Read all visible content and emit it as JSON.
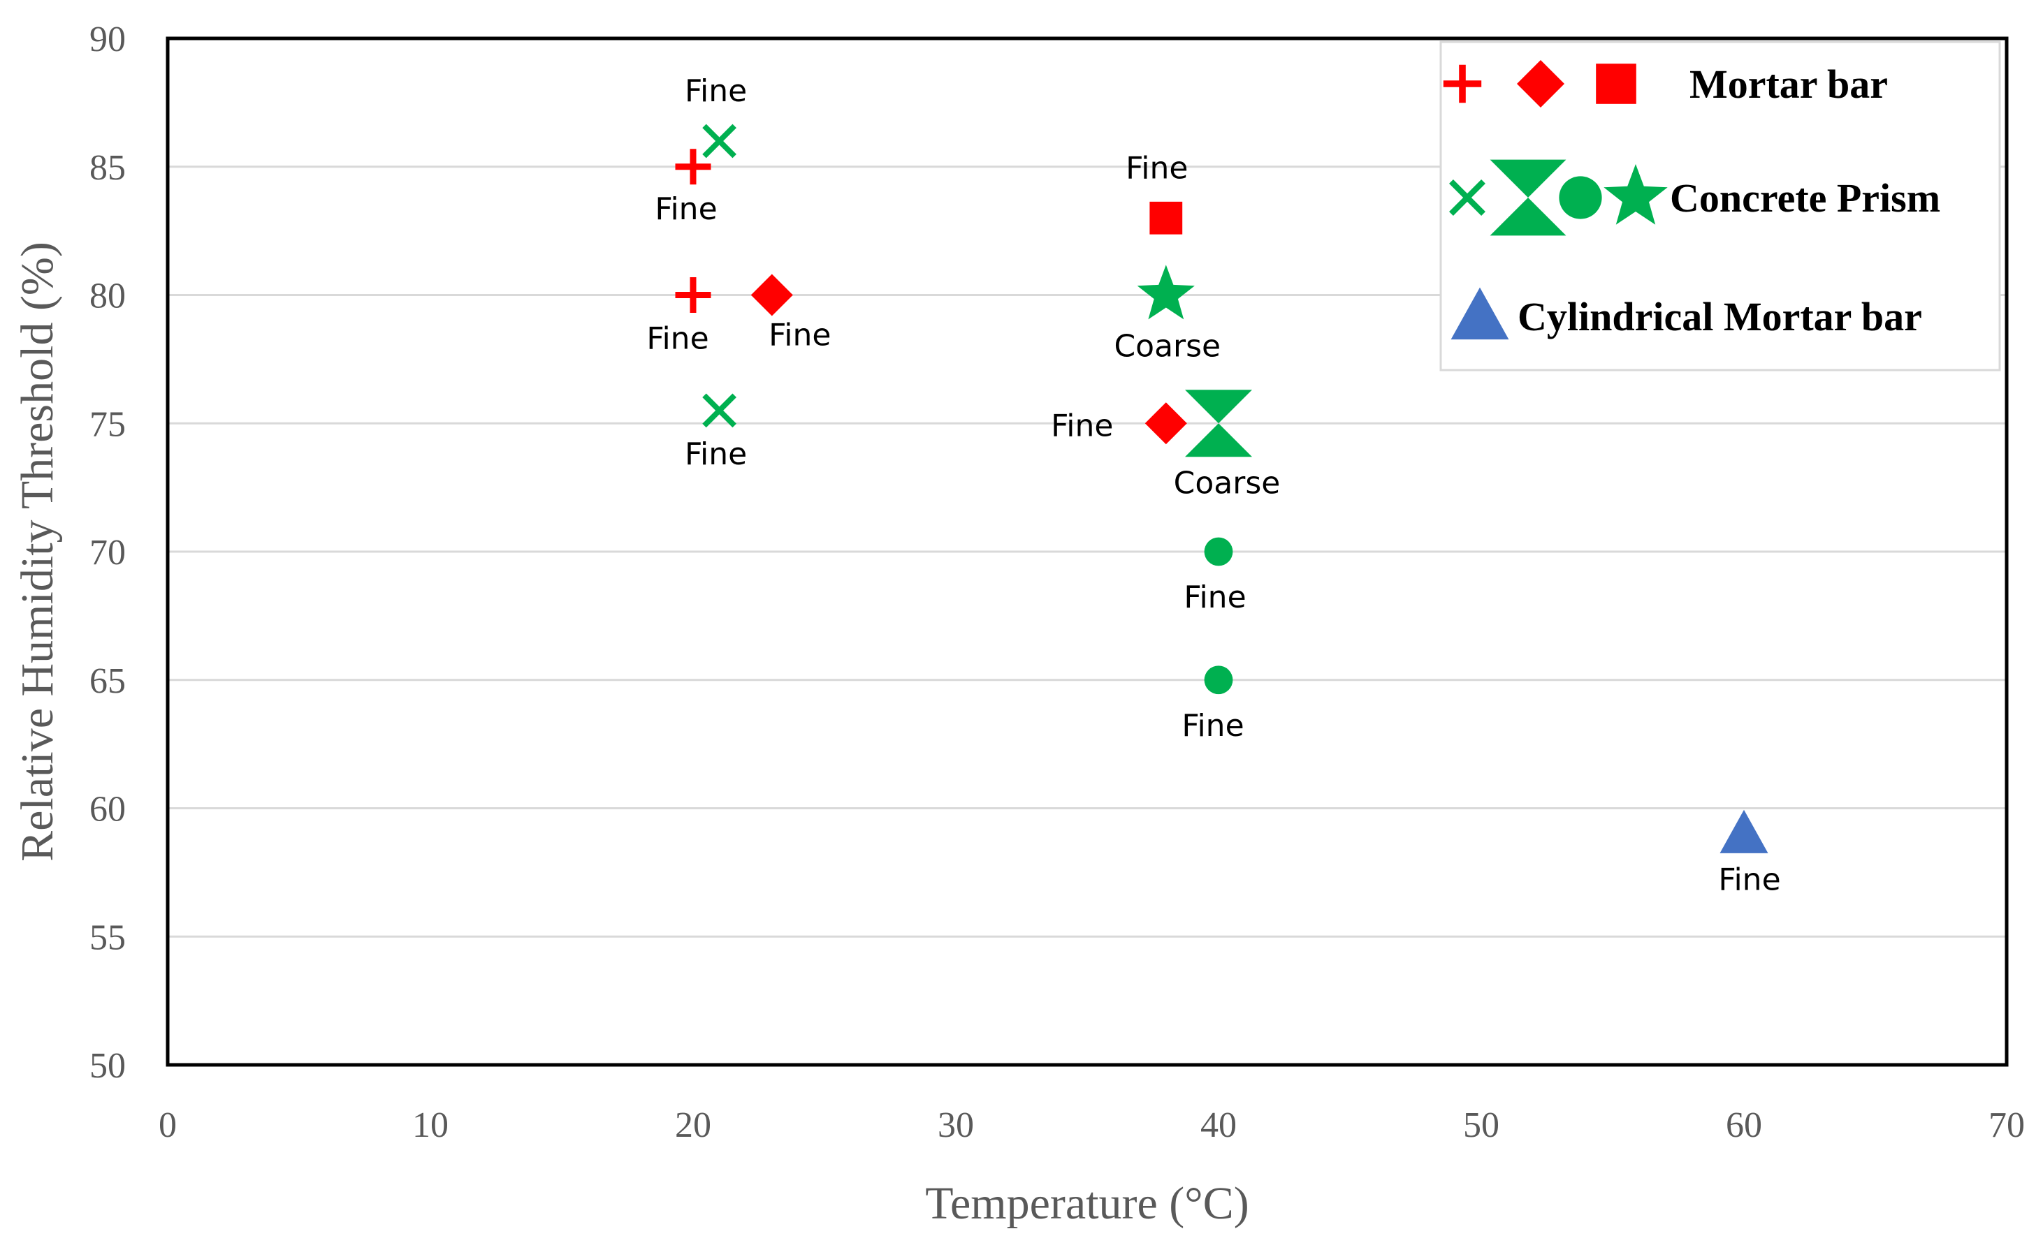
{
  "chart_data": {
    "type": "scatter",
    "title": "",
    "xlabel": "Temperature (°C)",
    "ylabel": "Relative Humidity Threshold (%)",
    "xlim": [
      0,
      70
    ],
    "ylim": [
      50,
      90
    ],
    "x_ticks": [
      0,
      10,
      20,
      30,
      40,
      50,
      60,
      70
    ],
    "y_ticks": [
      50,
      55,
      60,
      65,
      70,
      75,
      80,
      85,
      90
    ],
    "grid": "horizontal",
    "legend_position": "top-right",
    "colors": {
      "mortar": "#ff0000",
      "concrete": "#00b050",
      "cylindrical": "#4472c4"
    },
    "legend": [
      {
        "name": "Mortar bar",
        "markers": [
          "plus",
          "diamond",
          "square"
        ],
        "color": "#ff0000"
      },
      {
        "name": "Concrete Prism",
        "markers": [
          "x",
          "hourglass",
          "circle",
          "star"
        ],
        "color": "#00b050"
      },
      {
        "name": "Cylindrical Mortar bar",
        "markers": [
          "triangle"
        ],
        "color": "#4472c4"
      }
    ],
    "series": [
      {
        "name": "Mortar bar",
        "color": "#ff0000",
        "points": [
          {
            "x": 20,
            "y": 85,
            "marker": "plus",
            "label": "Fine"
          },
          {
            "x": 20,
            "y": 80,
            "marker": "plus",
            "label": "Fine"
          },
          {
            "x": 23,
            "y": 80,
            "marker": "diamond",
            "label": "Fine"
          },
          {
            "x": 38,
            "y": 83,
            "marker": "square",
            "label": "Fine"
          },
          {
            "x": 38,
            "y": 75,
            "marker": "diamond",
            "label": "Fine"
          }
        ]
      },
      {
        "name": "Concrete Prism",
        "color": "#00b050",
        "points": [
          {
            "x": 21,
            "y": 86,
            "marker": "x",
            "label": "Fine"
          },
          {
            "x": 21,
            "y": 75.5,
            "marker": "x",
            "label": "Fine"
          },
          {
            "x": 38,
            "y": 80,
            "marker": "star",
            "label": "Coarse"
          },
          {
            "x": 40,
            "y": 75,
            "marker": "hourglass",
            "label": "Coarse"
          },
          {
            "x": 40,
            "y": 70,
            "marker": "circle",
            "label": "Fine"
          },
          {
            "x": 40,
            "y": 65,
            "marker": "circle",
            "label": "Fine"
          }
        ]
      },
      {
        "name": "Cylindrical Mortar bar",
        "color": "#4472c4",
        "points": [
          {
            "x": 60,
            "y": 59,
            "marker": "triangle",
            "label": "Fine"
          }
        ]
      }
    ]
  }
}
